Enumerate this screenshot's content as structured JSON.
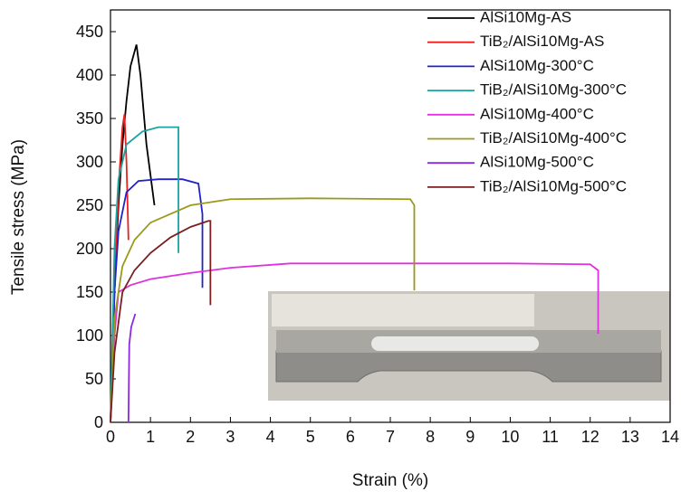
{
  "chart_data": {
    "type": "line",
    "x_label": "Strain (%)",
    "y_label": "Tensile stress (MPa)",
    "xlim": [
      0,
      14
    ],
    "xticks": [
      0,
      1,
      2,
      3,
      4,
      5,
      6,
      7,
      8,
      9,
      10,
      11,
      12,
      13,
      14
    ],
    "ylim": [
      0,
      475
    ],
    "yticks": [
      0,
      50,
      100,
      150,
      200,
      250,
      300,
      350,
      400,
      450
    ],
    "series": [
      {
        "name": "AlSi10Mg-AS",
        "color": "#000000",
        "x": [
          0,
          0.1,
          0.2,
          0.3,
          0.4,
          0.5,
          0.65,
          0.75,
          0.9,
          1.1
        ],
        "values": [
          0,
          150,
          250,
          320,
          370,
          410,
          435,
          400,
          320,
          250
        ]
      },
      {
        "name": "TiB₂/AlSi10Mg-AS",
        "color": "#e8211e",
        "x": [
          0,
          0.1,
          0.2,
          0.3,
          0.35,
          0.4,
          0.45
        ],
        "values": [
          0,
          150,
          270,
          340,
          355,
          300,
          210
        ]
      },
      {
        "name": "AlSi10Mg-300°C",
        "color": "#2222cc",
        "x": [
          0,
          0.1,
          0.2,
          0.4,
          0.7,
          1.2,
          1.8,
          2.2,
          2.3,
          2.3
        ],
        "values": [
          0,
          150,
          220,
          265,
          278,
          280,
          280,
          275,
          240,
          155
        ]
      },
      {
        "name": "TiB₂/AlSi10Mg-300°C",
        "color": "#1aa3a0",
        "x": [
          0,
          0.1,
          0.2,
          0.4,
          0.8,
          1.2,
          1.7,
          1.7
        ],
        "values": [
          0,
          200,
          280,
          320,
          335,
          340,
          340,
          195
        ]
      },
      {
        "name": "AlSi10Mg-400°C",
        "color": "#e030e0",
        "x": [
          0,
          0.1,
          0.2,
          0.5,
          1,
          2,
          3,
          4.5,
          7,
          10,
          12,
          12.2,
          12.2
        ],
        "values": [
          0,
          100,
          150,
          158,
          165,
          172,
          178,
          183,
          183,
          183,
          182,
          175,
          102
        ]
      },
      {
        "name": "TiB₂/AlSi10Mg-400°C",
        "color": "#9a9a1a",
        "x": [
          0,
          0.1,
          0.3,
          0.6,
          1,
          2,
          3,
          5,
          7.5,
          7.6,
          7.6
        ],
        "values": [
          0,
          120,
          180,
          210,
          230,
          250,
          257,
          258,
          257,
          250,
          152
        ]
      },
      {
        "name": "AlSi10Mg-500°C",
        "color": "#8a2be2",
        "x": [
          0.45,
          0.47,
          0.52,
          0.6,
          0.62
        ],
        "values": [
          0,
          90,
          110,
          122,
          125
        ]
      },
      {
        "name": "TiB₂/AlSi10Mg-500°C",
        "color": "#7a1f1f",
        "x": [
          0,
          0.1,
          0.3,
          0.6,
          1,
          1.5,
          2,
          2.45,
          2.5,
          2.5
        ],
        "values": [
          0,
          80,
          150,
          175,
          195,
          213,
          225,
          232,
          232,
          135
        ]
      }
    ]
  }
}
